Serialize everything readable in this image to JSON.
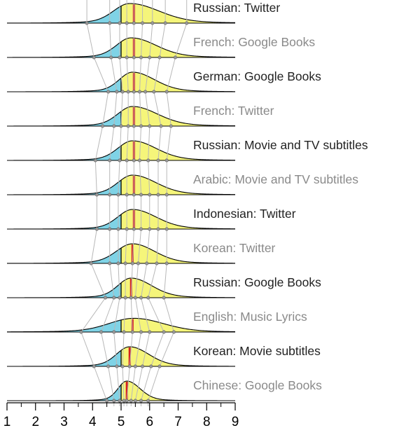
{
  "chart_data": {
    "type": "ridgeline",
    "title": "",
    "xlabel": "",
    "ylabel": "",
    "xlim": [
      1,
      9
    ],
    "x_ticks": [
      1,
      2,
      3,
      4,
      5,
      6,
      7,
      8,
      9
    ],
    "neutral_value": 5,
    "colors": {
      "below_neutral": "#7fd3e6",
      "above_neutral": "#f5f57a",
      "median_line": "#d61e1e",
      "percentile_lines": "#b8b8b8",
      "outline": "#000000",
      "label_dark": "#222222",
      "label_gray": "#8a8a8a"
    },
    "series": [
      {
        "name": "Russian: Twitter",
        "label_color": "dark",
        "median": 5.45,
        "percentiles": [
          3.8,
          4.6,
          4.95,
          5.2,
          5.45,
          5.75,
          6.1,
          6.55,
          7.3
        ],
        "peak": 5.3,
        "spread_left": 0.55,
        "spread_right": 1.0,
        "amplitude": 1.0
      },
      {
        "name": "French: Google Books",
        "label_color": "gray",
        "median": 5.45,
        "percentiles": [
          4.05,
          4.65,
          4.95,
          5.2,
          5.45,
          5.7,
          6.0,
          6.35,
          6.9
        ],
        "peak": 5.35,
        "spread_left": 0.5,
        "spread_right": 0.85,
        "amplitude": 1.0
      },
      {
        "name": "German: Google Books",
        "label_color": "dark",
        "median": 5.45,
        "percentiles": [
          4.55,
          4.85,
          5.05,
          5.25,
          5.45,
          5.65,
          5.85,
          6.15,
          6.6
        ],
        "peak": 5.4,
        "spread_left": 0.45,
        "spread_right": 0.75,
        "amplitude": 1.0
      },
      {
        "name": "French: Twitter",
        "label_color": "gray",
        "median": 5.45,
        "percentiles": [
          4.35,
          4.75,
          5.0,
          5.25,
          5.45,
          5.7,
          6.0,
          6.4,
          6.75
        ],
        "peak": 5.4,
        "spread_left": 0.5,
        "spread_right": 0.85,
        "amplitude": 1.0
      },
      {
        "name": "Russian: Movie and TV subtitles",
        "label_color": "dark",
        "median": 5.45,
        "percentiles": [
          4.1,
          4.6,
          4.95,
          5.2,
          5.45,
          5.65,
          5.95,
          6.3,
          6.6
        ],
        "peak": 5.4,
        "spread_left": 0.5,
        "spread_right": 0.8,
        "amplitude": 1.0
      },
      {
        "name": "Arabic: Movie and TV subtitles",
        "label_color": "gray",
        "median": 5.45,
        "percentiles": [
          4.15,
          4.6,
          4.9,
          5.2,
          5.45,
          5.7,
          6.0,
          6.3,
          6.6
        ],
        "peak": 5.4,
        "spread_left": 0.5,
        "spread_right": 0.8,
        "amplitude": 1.0
      },
      {
        "name": "Indonesian: Twitter",
        "label_color": "dark",
        "median": 5.45,
        "percentiles": [
          4.15,
          4.6,
          4.9,
          5.2,
          5.45,
          5.7,
          6.0,
          6.3,
          6.6
        ],
        "peak": 5.4,
        "spread_left": 0.5,
        "spread_right": 0.8,
        "amplitude": 1.0
      },
      {
        "name": "Korean: Twitter",
        "label_color": "gray",
        "median": 5.4,
        "percentiles": [
          3.95,
          4.6,
          4.9,
          5.15,
          5.4,
          5.6,
          5.9,
          6.25,
          6.6
        ],
        "peak": 5.4,
        "spread_left": 0.55,
        "spread_right": 0.75,
        "amplitude": 1.0
      },
      {
        "name": "Russian: Google Books",
        "label_color": "dark",
        "median": 5.35,
        "percentiles": [
          4.45,
          4.75,
          4.95,
          5.15,
          5.35,
          5.5,
          5.7,
          5.95,
          6.5
        ],
        "peak": 5.35,
        "spread_left": 0.45,
        "spread_right": 0.7,
        "amplitude": 1.0
      },
      {
        "name": "English: Music Lyrics",
        "label_color": "gray",
        "median": 5.4,
        "percentiles": [
          3.6,
          4.3,
          4.75,
          5.1,
          5.4,
          5.7,
          6.0,
          6.5,
          6.85
        ],
        "peak": 5.45,
        "spread_left": 0.85,
        "spread_right": 1.0,
        "amplitude": 0.7
      },
      {
        "name": "Korean: Movie subtitles",
        "label_color": "dark",
        "median": 5.3,
        "percentiles": [
          4.05,
          4.55,
          4.85,
          5.05,
          5.3,
          5.5,
          5.75,
          6.05,
          6.35
        ],
        "peak": 5.3,
        "spread_left": 0.45,
        "spread_right": 0.65,
        "amplitude": 1.0
      },
      {
        "name": "Chinese: Google Books",
        "label_color": "gray",
        "median": 5.2,
        "percentiles": [
          4.5,
          4.75,
          4.95,
          5.1,
          5.2,
          5.35,
          5.5,
          5.7,
          5.95
        ],
        "peak": 5.2,
        "spread_left": 0.3,
        "spread_right": 0.45,
        "amplitude": 1.0
      }
    ]
  }
}
